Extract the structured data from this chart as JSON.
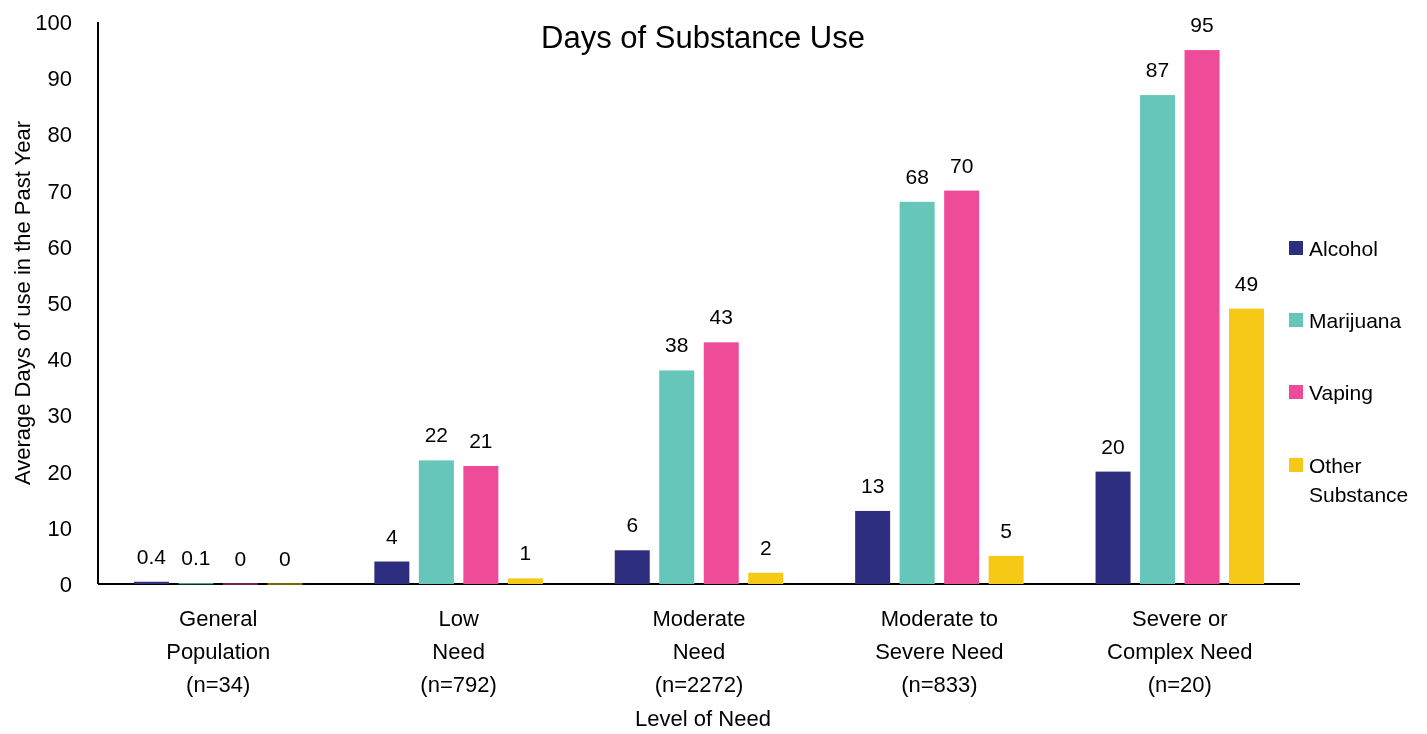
{
  "chart_data": {
    "type": "bar",
    "title": "Days of Substance Use",
    "xlabel": "Level of Need",
    "ylabel": "Average Days of use in the Past Year",
    "categories": [
      "General\nPopulation\n(n=34)",
      "Low\nNeed\n(n=792)",
      "Moderate\nNeed\n(n=2272)",
      "Moderate to\nSevere Need\n(n=833)",
      "Severe or\nComplex Need\n(n=20)"
    ],
    "series": [
      {
        "name": "Alcohol",
        "color": "#2e2e80",
        "values": [
          0.4,
          4,
          6,
          13,
          20
        ]
      },
      {
        "name": "Marijuana",
        "color": "#66c6ba",
        "values": [
          0.1,
          22,
          38,
          68,
          87
        ]
      },
      {
        "name": "Vaping",
        "color": "#ee4b98",
        "values": [
          0,
          21,
          43,
          70,
          95
        ]
      },
      {
        "name": "Other Substance",
        "color": "#f6c917",
        "values": [
          0,
          1,
          2,
          5,
          49
        ]
      }
    ],
    "ylim": [
      0,
      100
    ],
    "yticks": [
      0,
      10,
      20,
      30,
      40,
      50,
      60,
      70,
      80,
      90,
      100
    ],
    "grid": false,
    "legend": "right",
    "data_labels": true
  }
}
